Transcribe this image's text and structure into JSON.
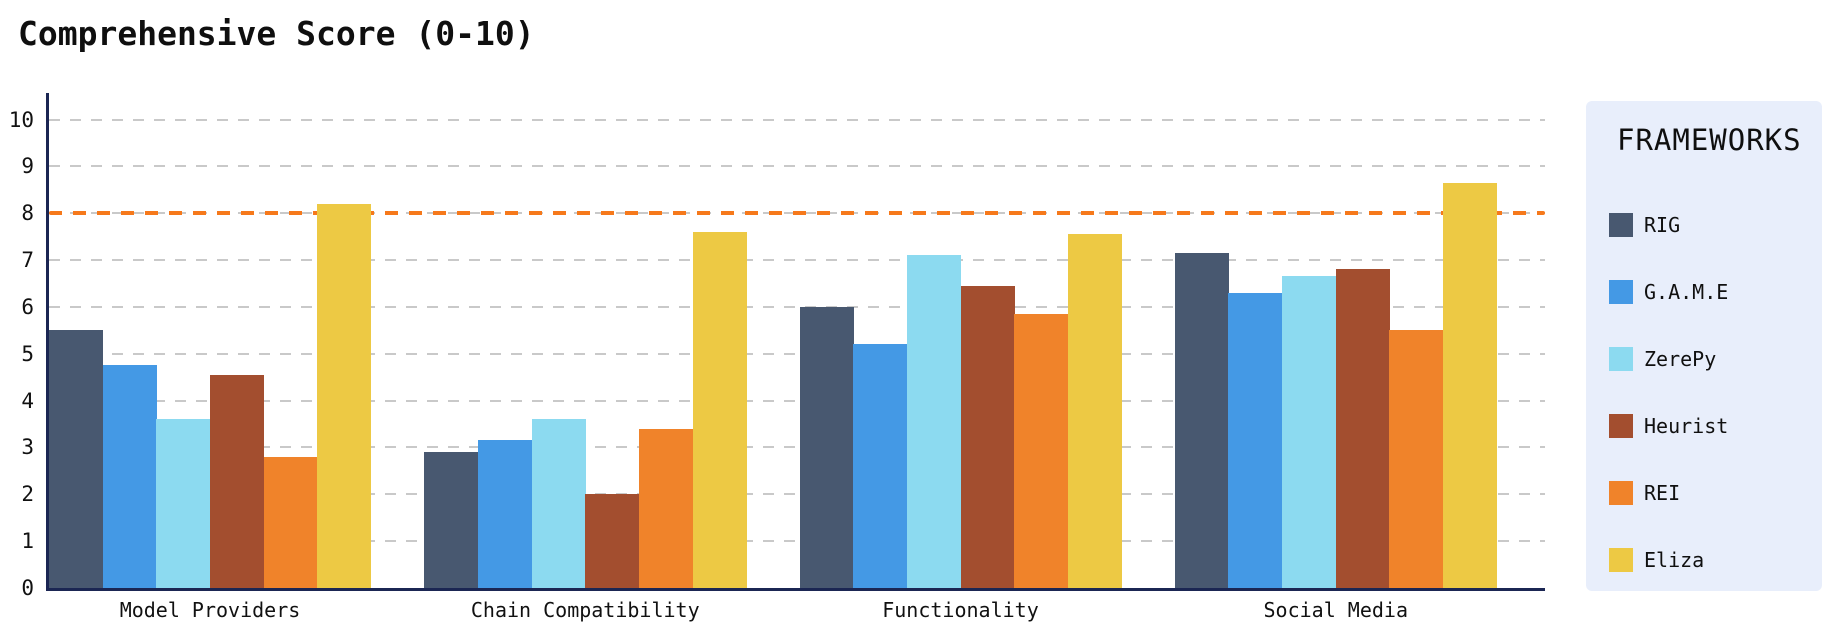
{
  "page": {
    "background": "#ffffff"
  },
  "title": "Comprehensive Score (0-10)",
  "legend": {
    "title": "FRAMEWORKS",
    "position": "right",
    "background": "#e8eefb"
  },
  "chart_data": {
    "type": "bar",
    "title": "Comprehensive Score (0-10)",
    "categories": [
      "Model Providers",
      "Chain Compatibility",
      "Functionality",
      "Social Media"
    ],
    "series": [
      {
        "name": "RIG",
        "color": "#485870",
        "values": [
          5.5,
          2.9,
          6.0,
          7.15
        ]
      },
      {
        "name": "G.A.M.E",
        "color": "#4499e5",
        "values": [
          4.75,
          3.15,
          5.2,
          6.3
        ]
      },
      {
        "name": "ZerePy",
        "color": "#8cdaf0",
        "values": [
          3.6,
          3.6,
          7.1,
          6.65
        ]
      },
      {
        "name": "Heurist",
        "color": "#a34e2f",
        "values": [
          4.55,
          2.0,
          6.45,
          6.8
        ]
      },
      {
        "name": "REI",
        "color": "#f0832a",
        "values": [
          2.8,
          3.4,
          5.85,
          5.5
        ]
      },
      {
        "name": "Eliza",
        "color": "#edc944",
        "values": [
          8.2,
          7.6,
          7.55,
          8.65
        ]
      }
    ],
    "ylim": [
      0,
      10
    ],
    "yticks": [
      0,
      1,
      2,
      3,
      4,
      5,
      6,
      7,
      8,
      9,
      10
    ],
    "grid": true,
    "gridline_color": "#c9c9c9",
    "axis_color": "#1b2653",
    "threshold_line": {
      "value": 8,
      "color": "#f6791b",
      "style": "dashed"
    },
    "legend_position": "right"
  }
}
